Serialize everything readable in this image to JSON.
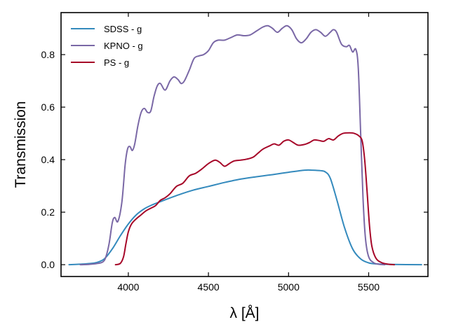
{
  "chart_data": {
    "type": "line",
    "title": "",
    "xlabel": "λ [Å]",
    "ylabel": "Transmission",
    "xlim": [
      3580,
      5870
    ],
    "ylim": [
      -0.045,
      0.96
    ],
    "xticks": [
      4000,
      4500,
      5000,
      5500
    ],
    "yticks": [
      0.0,
      0.2,
      0.4,
      0.6,
      0.8
    ],
    "ytick_labels": [
      "0.0",
      "0.2",
      "0.4",
      "0.6",
      "0.8"
    ],
    "grid": false,
    "legend_position": "top-left",
    "series": [
      {
        "name": "SDSS - g",
        "color": "#348abd",
        "points": [
          [
            3630,
            0.0
          ],
          [
            3700,
            0.002
          ],
          [
            3750,
            0.004
          ],
          [
            3800,
            0.008
          ],
          [
            3850,
            0.022
          ],
          [
            3900,
            0.06
          ],
          [
            3950,
            0.11
          ],
          [
            4000,
            0.155
          ],
          [
            4050,
            0.19
          ],
          [
            4100,
            0.213
          ],
          [
            4150,
            0.228
          ],
          [
            4200,
            0.24
          ],
          [
            4300,
            0.263
          ],
          [
            4400,
            0.283
          ],
          [
            4500,
            0.298
          ],
          [
            4600,
            0.313
          ],
          [
            4700,
            0.326
          ],
          [
            4800,
            0.335
          ],
          [
            4900,
            0.343
          ],
          [
            5000,
            0.352
          ],
          [
            5100,
            0.36
          ],
          [
            5150,
            0.36
          ],
          [
            5200,
            0.358
          ],
          [
            5230,
            0.353
          ],
          [
            5260,
            0.33
          ],
          [
            5300,
            0.25
          ],
          [
            5350,
            0.14
          ],
          [
            5400,
            0.06
          ],
          [
            5450,
            0.022
          ],
          [
            5500,
            0.007
          ],
          [
            5550,
            0.003
          ],
          [
            5650,
            0.001
          ],
          [
            5830,
            0.0
          ]
        ]
      },
      {
        "name": "KPNO - g",
        "color": "#7a68a6",
        "points": [
          [
            3700,
            0.0
          ],
          [
            3750,
            0.001
          ],
          [
            3800,
            0.004
          ],
          [
            3840,
            0.01
          ],
          [
            3860,
            0.03
          ],
          [
            3880,
            0.08
          ],
          [
            3900,
            0.16
          ],
          [
            3915,
            0.18
          ],
          [
            3935,
            0.165
          ],
          [
            3960,
            0.24
          ],
          [
            3980,
            0.38
          ],
          [
            3995,
            0.44
          ],
          [
            4010,
            0.45
          ],
          [
            4025,
            0.435
          ],
          [
            4040,
            0.46
          ],
          [
            4060,
            0.53
          ],
          [
            4080,
            0.58
          ],
          [
            4100,
            0.595
          ],
          [
            4120,
            0.58
          ],
          [
            4140,
            0.585
          ],
          [
            4160,
            0.64
          ],
          [
            4180,
            0.68
          ],
          [
            4200,
            0.69
          ],
          [
            4230,
            0.665
          ],
          [
            4260,
            0.7
          ],
          [
            4285,
            0.715
          ],
          [
            4310,
            0.705
          ],
          [
            4330,
            0.69
          ],
          [
            4350,
            0.7
          ],
          [
            4380,
            0.74
          ],
          [
            4410,
            0.785
          ],
          [
            4440,
            0.795
          ],
          [
            4470,
            0.8
          ],
          [
            4500,
            0.815
          ],
          [
            4530,
            0.845
          ],
          [
            4560,
            0.855
          ],
          [
            4600,
            0.855
          ],
          [
            4640,
            0.865
          ],
          [
            4680,
            0.875
          ],
          [
            4720,
            0.872
          ],
          [
            4760,
            0.875
          ],
          [
            4800,
            0.89
          ],
          [
            4840,
            0.905
          ],
          [
            4870,
            0.91
          ],
          [
            4900,
            0.9
          ],
          [
            4930,
            0.885
          ],
          [
            4960,
            0.9
          ],
          [
            4990,
            0.91
          ],
          [
            5020,
            0.895
          ],
          [
            5050,
            0.86
          ],
          [
            5080,
            0.845
          ],
          [
            5110,
            0.86
          ],
          [
            5140,
            0.885
          ],
          [
            5170,
            0.895
          ],
          [
            5200,
            0.885
          ],
          [
            5230,
            0.87
          ],
          [
            5260,
            0.885
          ],
          [
            5280,
            0.895
          ],
          [
            5300,
            0.885
          ],
          [
            5330,
            0.84
          ],
          [
            5360,
            0.83
          ],
          [
            5380,
            0.835
          ],
          [
            5400,
            0.81
          ],
          [
            5420,
            0.82
          ],
          [
            5435,
            0.75
          ],
          [
            5450,
            0.5
          ],
          [
            5465,
            0.25
          ],
          [
            5480,
            0.1
          ],
          [
            5500,
            0.03
          ],
          [
            5530,
            0.008
          ],
          [
            5560,
            0.002
          ],
          [
            5600,
            0.0
          ]
        ]
      },
      {
        "name": "PS - g",
        "color": "#a60628",
        "points": [
          [
            3920,
            0.0
          ],
          [
            3950,
            0.005
          ],
          [
            3970,
            0.03
          ],
          [
            3985,
            0.08
          ],
          [
            4000,
            0.125
          ],
          [
            4020,
            0.155
          ],
          [
            4050,
            0.175
          ],
          [
            4080,
            0.19
          ],
          [
            4110,
            0.205
          ],
          [
            4140,
            0.215
          ],
          [
            4170,
            0.225
          ],
          [
            4200,
            0.245
          ],
          [
            4230,
            0.255
          ],
          [
            4260,
            0.27
          ],
          [
            4300,
            0.298
          ],
          [
            4340,
            0.31
          ],
          [
            4380,
            0.338
          ],
          [
            4420,
            0.348
          ],
          [
            4460,
            0.365
          ],
          [
            4500,
            0.385
          ],
          [
            4540,
            0.398
          ],
          [
            4570,
            0.39
          ],
          [
            4600,
            0.375
          ],
          [
            4630,
            0.385
          ],
          [
            4660,
            0.395
          ],
          [
            4700,
            0.398
          ],
          [
            4740,
            0.402
          ],
          [
            4780,
            0.41
          ],
          [
            4810,
            0.425
          ],
          [
            4840,
            0.44
          ],
          [
            4880,
            0.452
          ],
          [
            4910,
            0.46
          ],
          [
            4940,
            0.455
          ],
          [
            4970,
            0.47
          ],
          [
            5000,
            0.475
          ],
          [
            5030,
            0.465
          ],
          [
            5060,
            0.455
          ],
          [
            5100,
            0.458
          ],
          [
            5130,
            0.465
          ],
          [
            5160,
            0.475
          ],
          [
            5190,
            0.473
          ],
          [
            5220,
            0.47
          ],
          [
            5250,
            0.48
          ],
          [
            5280,
            0.475
          ],
          [
            5310,
            0.49
          ],
          [
            5340,
            0.5
          ],
          [
            5380,
            0.502
          ],
          [
            5410,
            0.5
          ],
          [
            5440,
            0.49
          ],
          [
            5460,
            0.47
          ],
          [
            5475,
            0.4
          ],
          [
            5490,
            0.28
          ],
          [
            5505,
            0.15
          ],
          [
            5520,
            0.07
          ],
          [
            5545,
            0.025
          ],
          [
            5580,
            0.008
          ],
          [
            5620,
            0.002
          ],
          [
            5660,
            0.0
          ]
        ]
      }
    ]
  }
}
